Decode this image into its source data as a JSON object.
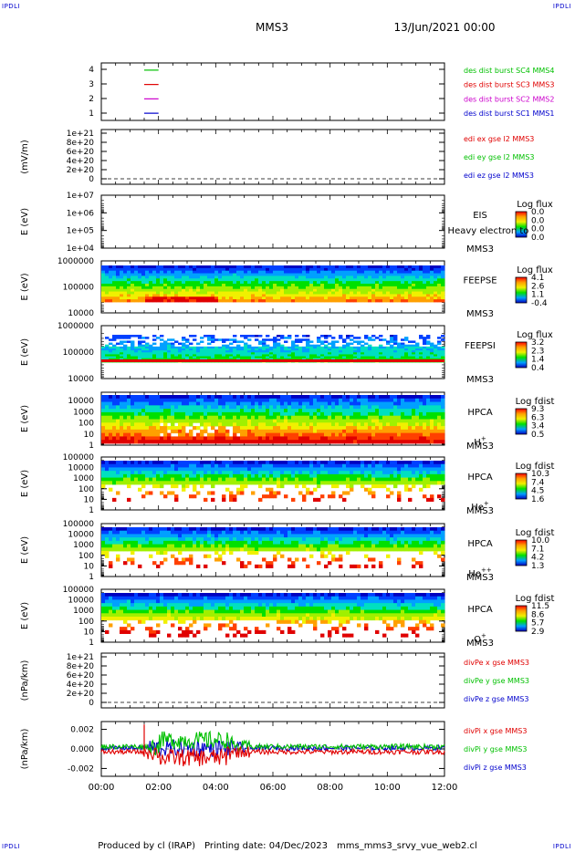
{
  "header": {
    "corner_label": "IPDLI",
    "title": "MMS3",
    "date": "13/Jun/2021 00:00"
  },
  "footer": {
    "produced_by": "Produced by cl (IRAP)",
    "printing_date": "Printing date: 04/Dec/2023",
    "filename": "mms_mms3_srvy_vue_web2.cl"
  },
  "time_axis": {
    "ticks": [
      "00:00",
      "02:00",
      "04:00",
      "06:00",
      "08:00",
      "10:00",
      "12:00"
    ],
    "range_hours": [
      0,
      12
    ]
  },
  "colors": {
    "red": "#e00000",
    "green": "#00c000",
    "blue": "#0000cc",
    "magenta": "#cc00cc",
    "black": "#000000"
  },
  "chart_data": [
    {
      "type": "line",
      "panel": "burst",
      "ylabel": "",
      "yticks": [
        "4",
        "3",
        "2",
        "1"
      ],
      "ylim": [
        0.5,
        4.5
      ],
      "series": [
        {
          "name": "des dist burst SC1 MMS1",
          "color": "#0000cc",
          "y": 1,
          "x": [
            1.5,
            2.0
          ]
        },
        {
          "name": "des dist burst SC2 MMS2",
          "color": "#cc00cc",
          "y": 2,
          "x": [
            1.5,
            2.0
          ]
        },
        {
          "name": "des dist burst SC3 MMS3",
          "color": "#e00000",
          "y": 3,
          "x": [
            1.5,
            2.0
          ]
        },
        {
          "name": "des dist burst SC4 MMS4",
          "color": "#00c000",
          "y": 4,
          "x": [
            1.5,
            2.0
          ]
        }
      ]
    },
    {
      "type": "line",
      "panel": "edi",
      "ylabel": "(mV/m)",
      "yticks": [
        "1e+21",
        "8e+20",
        "6e+20",
        "4e+20",
        "2e+20",
        "0"
      ],
      "series": [
        {
          "name": "edi ex gse l2 MMS3",
          "color": "#e00000"
        },
        {
          "name": "edi ey gse l2 MMS3",
          "color": "#00c000"
        },
        {
          "name": "edi ez gse l2 MMS3",
          "color": "#0000cc"
        }
      ]
    },
    {
      "type": "heatmap",
      "panel": "eis",
      "ylabel": "E (eV)",
      "yticks": [
        "1e+07",
        "1e+06",
        "1e+05",
        "1e+04"
      ],
      "labels": [
        "EIS",
        "MMS3"
      ],
      "overlay_text": "Heavy electron to",
      "colorbar": {
        "title": "Log flux",
        "ticks": [
          "0.0",
          "0.0",
          "0.0",
          "0.0"
        ]
      }
    },
    {
      "type": "heatmap",
      "panel": "feepse",
      "ylabel": "E (eV)",
      "yticks": [
        "1000000",
        "100000",
        "10000"
      ],
      "labels": [
        "FEEPSE",
        "MMS3"
      ],
      "colorbar": {
        "title": "Log flux",
        "ticks": [
          "4.1",
          "2.6",
          "1.1",
          "-0.4"
        ]
      }
    },
    {
      "type": "heatmap",
      "panel": "feepsi",
      "ylabel": "E (eV)",
      "yticks": [
        "1000000",
        "100000",
        "10000"
      ],
      "labels": [
        "FEEPSI",
        "MMS3"
      ],
      "colorbar": {
        "title": "Log flux",
        "ticks": [
          "3.2",
          "2.3",
          "1.4",
          "0.4"
        ]
      }
    },
    {
      "type": "heatmap",
      "panel": "hpca-h",
      "ylabel": "E (eV)",
      "yticks": [
        "10000",
        "1000",
        "100",
        "10",
        "1"
      ],
      "labels": [
        "HPCA",
        "MMS3"
      ],
      "species": {
        "base": "H",
        "sup": "+"
      },
      "colorbar": {
        "title": "Log fdist",
        "ticks": [
          "9.3",
          "6.3",
          "3.4",
          "0.5"
        ]
      }
    },
    {
      "type": "heatmap",
      "panel": "hpca-he",
      "ylabel": "E (eV)",
      "yticks": [
        "100000",
        "10000",
        "1000",
        "100",
        "10",
        "1"
      ],
      "labels": [
        "HPCA",
        "MMS3"
      ],
      "species": {
        "base": "He",
        "sup": "+"
      },
      "colorbar": {
        "title": "Log fdist",
        "ticks": [
          "10.3",
          "7.4",
          "4.5",
          "1.6"
        ]
      }
    },
    {
      "type": "heatmap",
      "panel": "hpca-hepp",
      "ylabel": "E (eV)",
      "yticks": [
        "100000",
        "10000",
        "1000",
        "100",
        "10",
        "1"
      ],
      "labels": [
        "HPCA",
        "MMS3"
      ],
      "species": {
        "base": "He",
        "sup": "++"
      },
      "colorbar": {
        "title": "Log fdist",
        "ticks": [
          "10.0",
          "7.1",
          "4.2",
          "1.3"
        ]
      }
    },
    {
      "type": "heatmap",
      "panel": "hpca-o",
      "ylabel": "E (eV)",
      "yticks": [
        "100000",
        "10000",
        "1000",
        "100",
        "10",
        "1"
      ],
      "labels": [
        "HPCA",
        "MMS3"
      ],
      "species": {
        "base": "O",
        "sup": "+"
      },
      "colorbar": {
        "title": "Log fdist",
        "ticks": [
          "11.5",
          "8.6",
          "5.7",
          "2.9"
        ]
      }
    },
    {
      "type": "line",
      "panel": "divpe",
      "ylabel": "(nPa/km)",
      "yticks": [
        "1e+21",
        "8e+20",
        "6e+20",
        "4e+20",
        "2e+20",
        "0"
      ],
      "series": [
        {
          "name": "divPe x gse MMS3",
          "color": "#e00000"
        },
        {
          "name": "divPe y gse MMS3",
          "color": "#00c000"
        },
        {
          "name": "divPe z gse MMS3",
          "color": "#0000cc"
        }
      ]
    },
    {
      "type": "line",
      "panel": "divpi",
      "ylabel": "(nPa/km)",
      "yticks": [
        "0.002",
        "0.000",
        "-0.002"
      ],
      "ylim": [
        -0.0028,
        0.0028
      ],
      "series": [
        {
          "name": "divPi x gse MMS3",
          "color": "#e00000"
        },
        {
          "name": "divPi y gse MMS3",
          "color": "#00c000"
        },
        {
          "name": "divPi z gse MMS3",
          "color": "#0000cc"
        }
      ]
    }
  ]
}
